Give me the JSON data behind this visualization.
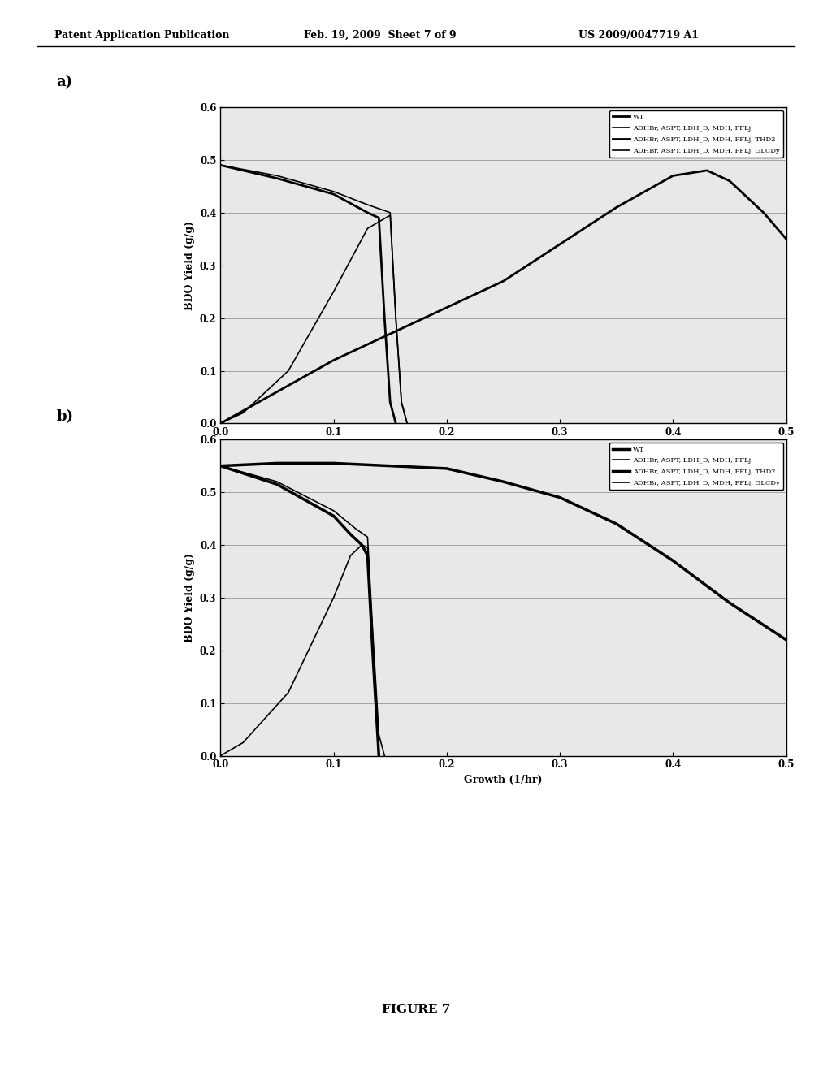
{
  "header_left": "Patent Application Publication",
  "header_mid": "Feb. 19, 2009  Sheet 7 of 9",
  "header_right": "US 2009/0047719 A1",
  "figure_label": "FIGURE 7",
  "xlabel": "Growth (1/hr)",
  "ylabel": "BDO Yield (g/g)",
  "xlim": [
    0,
    0.5
  ],
  "ylim": [
    0,
    0.6
  ],
  "xticks": [
    0,
    0.1,
    0.2,
    0.3,
    0.4,
    0.5
  ],
  "yticks": [
    0,
    0.1,
    0.2,
    0.3,
    0.4,
    0.5,
    0.6
  ],
  "legend_entries": [
    "WT",
    "ADHBr, ASPT, LDH_D, MDH, PFLj",
    "ADHBr, ASPT, LDH_D, MDH, PFLj, THD2",
    "ADHBr, ASPT, LDH_D, MDH, PFLj, GLCDy"
  ],
  "subplot_a_label": "a)",
  "subplot_b_label": "b)",
  "bg_color": "#d8d8d8",
  "curves_a": {
    "wt": {
      "x": [
        0,
        0.05,
        0.1,
        0.15,
        0.2,
        0.25,
        0.3,
        0.35,
        0.4,
        0.43,
        0.45,
        0.48,
        0.5
      ],
      "y": [
        0.0,
        0.06,
        0.12,
        0.17,
        0.22,
        0.27,
        0.34,
        0.41,
        0.47,
        0.48,
        0.46,
        0.4,
        0.35
      ],
      "lw": 2.0
    },
    "line2": {
      "x": [
        0,
        0.05,
        0.1,
        0.13,
        0.15,
        0.155,
        0.16,
        0.165
      ],
      "y": [
        0.49,
        0.47,
        0.44,
        0.415,
        0.4,
        0.2,
        0.04,
        0.0
      ],
      "lw": 1.2
    },
    "line3": {
      "x": [
        0,
        0.05,
        0.1,
        0.13,
        0.14,
        0.145,
        0.15,
        0.155
      ],
      "y": [
        0.49,
        0.465,
        0.435,
        0.4,
        0.39,
        0.2,
        0.04,
        0.0
      ],
      "lw": 2.0
    },
    "line4": {
      "x": [
        0.0,
        0.02,
        0.06,
        0.1,
        0.13,
        0.15,
        0.155,
        0.16,
        0.165
      ],
      "y": [
        0.0,
        0.02,
        0.1,
        0.25,
        0.37,
        0.395,
        0.2,
        0.04,
        0.0
      ],
      "lw": 1.2
    }
  },
  "curves_b": {
    "wt": {
      "x": [
        0,
        0.05,
        0.1,
        0.15,
        0.2,
        0.25,
        0.3,
        0.35,
        0.4,
        0.45,
        0.5
      ],
      "y": [
        0.55,
        0.555,
        0.555,
        0.55,
        0.545,
        0.52,
        0.49,
        0.44,
        0.37,
        0.29,
        0.22
      ],
      "lw": 2.5
    },
    "line2": {
      "x": [
        0,
        0.05,
        0.1,
        0.12,
        0.13,
        0.135,
        0.14,
        0.145
      ],
      "y": [
        0.55,
        0.52,
        0.465,
        0.43,
        0.415,
        0.22,
        0.04,
        0.0
      ],
      "lw": 1.2
    },
    "line3": {
      "x": [
        0,
        0.05,
        0.1,
        0.115,
        0.125,
        0.13,
        0.135,
        0.14
      ],
      "y": [
        0.55,
        0.515,
        0.455,
        0.42,
        0.4,
        0.38,
        0.18,
        0.0
      ],
      "lw": 2.5
    },
    "line4": {
      "x": [
        0.0,
        0.02,
        0.06,
        0.1,
        0.115,
        0.125,
        0.13,
        0.135,
        0.14
      ],
      "y": [
        0.0,
        0.025,
        0.12,
        0.3,
        0.38,
        0.4,
        0.395,
        0.18,
        0.0
      ],
      "lw": 1.2
    }
  }
}
